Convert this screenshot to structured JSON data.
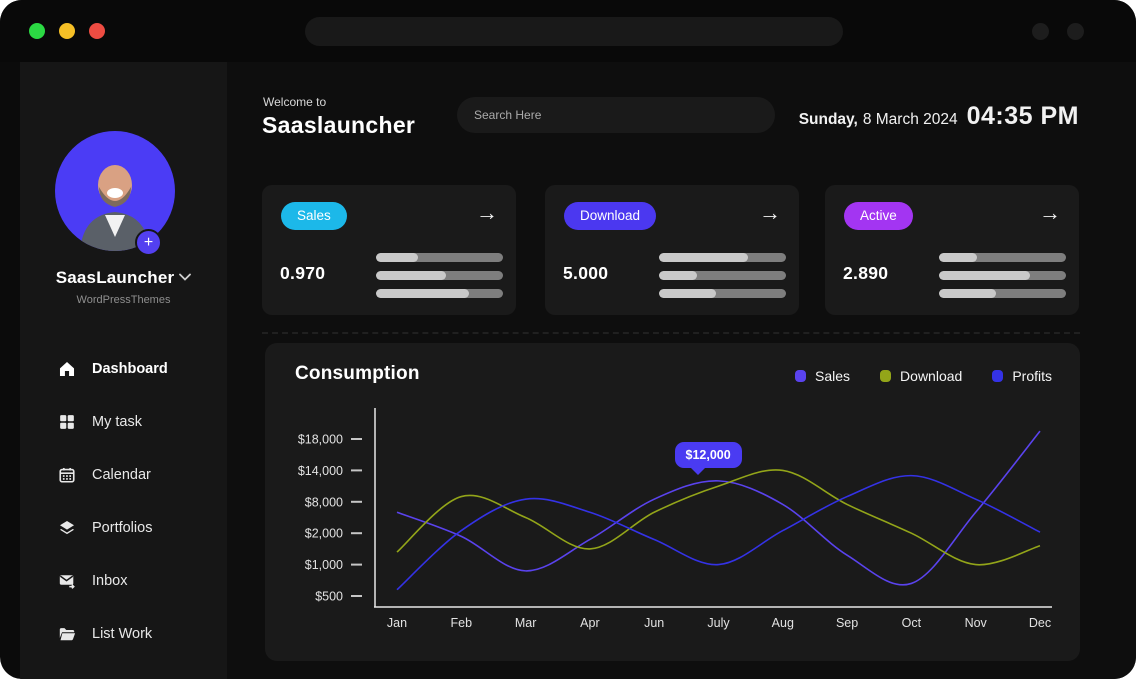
{
  "window": {
    "traffic_lights": {
      "colors": [
        "#2bd943",
        "#f6c026",
        "#ee4c42"
      ]
    }
  },
  "sidebar": {
    "profile_name": "SaasLauncher",
    "profile_subtitle": "WordPressThemes",
    "add_label": "+",
    "items": [
      {
        "label": "Dashboard",
        "icon": "home",
        "active": true
      },
      {
        "label": "My task",
        "icon": "grid",
        "active": false
      },
      {
        "label": "Calendar",
        "icon": "calendar",
        "active": false
      },
      {
        "label": "Portfolios",
        "icon": "layers",
        "active": false
      },
      {
        "label": "Inbox",
        "icon": "inbox",
        "active": false
      },
      {
        "label": "List Work",
        "icon": "folder",
        "active": false
      }
    ]
  },
  "header": {
    "welcome": "Welcome to",
    "app_name": "Saaslauncher",
    "search_placeholder": "Search Here",
    "date_day": "Sunday,",
    "date_rest": "8 March 2024",
    "time": "04:35 PM"
  },
  "stat_cards": [
    {
      "badge": "Sales",
      "badge_color": "#1cb8e9",
      "value": "0.970",
      "arrow": "→",
      "bars": [
        33,
        55,
        73
      ]
    },
    {
      "badge": "Download",
      "badge_color": "#4b38f0",
      "value": "5.000",
      "arrow": "→",
      "bars": [
        70,
        30,
        45
      ]
    },
    {
      "badge": "Active",
      "badge_color": "#a335f2",
      "value": "2.890",
      "arrow": "→",
      "bars": [
        30,
        72,
        45
      ]
    }
  ],
  "chart_data": {
    "type": "line",
    "title": "Consumption",
    "x_labels": [
      "Jan",
      "Feb",
      "Mar",
      "Apr",
      "Jun",
      "July",
      "Aug",
      "Sep",
      "Oct",
      "Nov",
      "Dec"
    ],
    "y_ticks": [
      {
        "label": "$18,000",
        "value": 18000
      },
      {
        "label": "$14,000",
        "value": 14000
      },
      {
        "label": "$8,000",
        "value": 8000
      },
      {
        "label": "$2,000",
        "value": 2000
      },
      {
        "label": "$1,000",
        "value": 1000
      },
      {
        "label": "$500",
        "value": 500
      }
    ],
    "ylim": [
      500,
      18000
    ],
    "grid": false,
    "legend_position": "top-right",
    "series": [
      {
        "name": "Sales",
        "color": "#5a43ee",
        "values": [
          6000,
          1900,
          900,
          1800,
          8500,
          12000,
          7500,
          1300,
          700,
          6000,
          19000
        ]
      },
      {
        "name": "Download",
        "color": "#93a519",
        "values": [
          1400,
          9000,
          5000,
          1500,
          6000,
          11000,
          14000,
          7500,
          2000,
          1000,
          1600
        ]
      },
      {
        "name": "Profits",
        "color": "#3432e6",
        "values": [
          600,
          2500,
          8500,
          6000,
          1800,
          1000,
          2500,
          9000,
          13000,
          8500,
          2200
        ]
      }
    ],
    "tooltip": {
      "label": "$12,000",
      "series": "Sales",
      "x_index": 5,
      "value": 12000
    }
  }
}
